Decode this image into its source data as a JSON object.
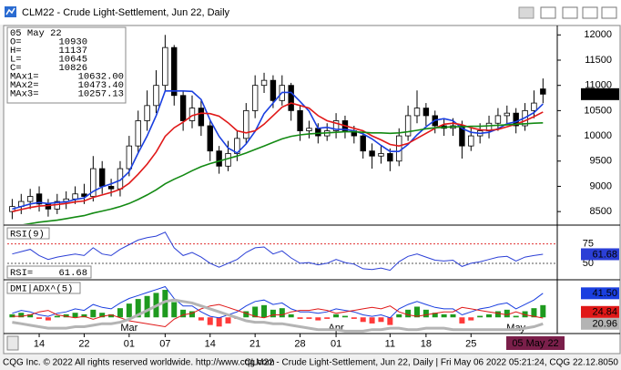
{
  "window": {
    "title": "CLM22 - Crude Light-Settlement, Jun 22, Daily",
    "footer_left": "CQG Inc. © 2022 All rights reserved worldwide. http://www.cqg.com",
    "footer_right": "CLM22 - Crude Light-Settlement, Jun 22, Daily | Fri May 06 2022 05:21:24, CQG 22.12.8050"
  },
  "chart_data": [
    {
      "type": "candlestick",
      "categories": [
        null,
        null,
        null,
        "14",
        null,
        null,
        null,
        null,
        "22",
        null,
        null,
        null,
        null,
        "01",
        null,
        null,
        null,
        "07",
        null,
        null,
        null,
        null,
        "14",
        null,
        null,
        null,
        null,
        "21",
        null,
        null,
        null,
        null,
        "28",
        null,
        null,
        null,
        "01",
        null,
        null,
        null,
        null,
        null,
        "11",
        null,
        null,
        null,
        "18",
        null,
        null,
        null,
        null,
        "25",
        null,
        null,
        null,
        null,
        null,
        null,
        null,
        null
      ],
      "month_labels": [
        null,
        null,
        null,
        null,
        null,
        null,
        null,
        null,
        null,
        null,
        null,
        null,
        null,
        "Mar",
        null,
        null,
        null,
        null,
        null,
        null,
        null,
        null,
        null,
        null,
        null,
        null,
        null,
        null,
        null,
        null,
        null,
        null,
        null,
        null,
        null,
        null,
        "Apr",
        null,
        null,
        null,
        null,
        null,
        null,
        null,
        null,
        null,
        null,
        null,
        null,
        null,
        null,
        null,
        null,
        null,
        null,
        null,
        "May",
        null,
        null,
        null
      ],
      "date_label": "05 May 22",
      "readout_labels": [
        "O=",
        "H=",
        "L=",
        "C="
      ],
      "open": [
        8500,
        8600,
        8700,
        8850,
        8650,
        8550,
        8700,
        8750,
        8850,
        8800,
        9350,
        9000,
        8950,
        9350,
        9800,
        10300,
        10600,
        11000,
        11750,
        10800,
        10300,
        10550,
        10200,
        9700,
        9400,
        9650,
        9950,
        10500,
        11000,
        11100,
        10700,
        11000,
        10500,
        10100,
        10150,
        10000,
        10100,
        10300,
        10100,
        10000,
        9700,
        9600,
        9650,
        9500,
        10000,
        10400,
        10550,
        10400,
        10200,
        10150,
        10200,
        9800,
        10000,
        10100,
        10250,
        10400,
        10450,
        10200,
        10500,
        10930
      ],
      "high": [
        8750,
        8850,
        8950,
        9000,
        8750,
        8850,
        8900,
        9000,
        9050,
        9600,
        9500,
        9150,
        9500,
        10000,
        10500,
        10900,
        11300,
        12000,
        11800,
        10900,
        10800,
        10700,
        10300,
        9800,
        9900,
        10100,
        10650,
        11200,
        11250,
        11200,
        11200,
        11050,
        10600,
        10300,
        10250,
        10250,
        10450,
        10400,
        10200,
        10100,
        9850,
        9800,
        9750,
        10150,
        10600,
        10900,
        10650,
        10500,
        10350,
        10350,
        10300,
        10150,
        10250,
        10400,
        10550,
        10600,
        10550,
        10650,
        10900,
        11137
      ],
      "low": [
        8350,
        8450,
        8550,
        8500,
        8400,
        8450,
        8550,
        8650,
        8650,
        8700,
        8850,
        8800,
        8800,
        9200,
        9650,
        10100,
        10450,
        10900,
        10600,
        10100,
        10150,
        10000,
        9500,
        9250,
        9300,
        9500,
        9850,
        10350,
        10850,
        10550,
        10600,
        10300,
        9900,
        9950,
        9850,
        9900,
        9950,
        9950,
        9850,
        9550,
        9350,
        9450,
        9300,
        9400,
        9900,
        10250,
        10200,
        10050,
        10000,
        10000,
        9550,
        9700,
        9850,
        9950,
        10100,
        10250,
        10050,
        10100,
        10350,
        10645
      ],
      "close": [
        8600,
        8700,
        8800,
        8650,
        8550,
        8700,
        8750,
        8850,
        8800,
        9350,
        9000,
        8950,
        9350,
        9800,
        10300,
        10600,
        11000,
        11750,
        10800,
        10300,
        10550,
        10200,
        9700,
        9400,
        9650,
        9950,
        10500,
        11000,
        11100,
        10700,
        11000,
        10500,
        10100,
        10150,
        10000,
        10100,
        10300,
        10100,
        10000,
        9700,
        9600,
        9650,
        9500,
        10000,
        10400,
        10550,
        10400,
        10200,
        10150,
        10200,
        9800,
        10000,
        10100,
        10250,
        10400,
        10450,
        10200,
        10500,
        10650,
        10826
      ],
      "up_color": "#ffffff",
      "down_color": "#000000",
      "last_box_color": "#000000",
      "series": [
        {
          "name": "MAx1=",
          "color": "#1a3fe0",
          "values": [
            8550,
            8600,
            8650,
            8680,
            8660,
            8680,
            8690,
            8740,
            8770,
            8900,
            8990,
            9050,
            9120,
            9290,
            9660,
            10000,
            10400,
            10890,
            10890,
            10890,
            10880,
            10720,
            10310,
            9990,
            9760,
            9660,
            9840,
            10090,
            10440,
            10650,
            10860,
            10860,
            10680,
            10490,
            10150,
            10170,
            10130,
            10130,
            10100,
            10040,
            9940,
            9810,
            9690,
            9690,
            9830,
            10020,
            10180,
            10310,
            10340,
            10300,
            10150,
            10070,
            10050,
            10070,
            10140,
            10240,
            10280,
            10360,
            10460,
            10632
          ],
          "value_labels": {
            "59": "10632.00"
          }
        },
        {
          "name": "MAx2=",
          "color": "#e01818",
          "values": [
            8500,
            8540,
            8580,
            8610,
            8620,
            8640,
            8660,
            8690,
            8710,
            8780,
            8830,
            8880,
            8940,
            9060,
            9240,
            9440,
            9680,
            9990,
            10160,
            10270,
            10400,
            10450,
            10440,
            10390,
            10260,
            10100,
            10060,
            10100,
            10230,
            10400,
            10570,
            10650,
            10600,
            10550,
            10400,
            10300,
            10250,
            10200,
            10150,
            10100,
            10000,
            9920,
            9830,
            9800,
            9850,
            9950,
            10050,
            10150,
            10230,
            10250,
            10220,
            10160,
            10120,
            10110,
            10130,
            10180,
            10230,
            10300,
            10380,
            10473.4
          ],
          "value_labels": {
            "59": "10473.40"
          }
        },
        {
          "name": "MAx3=",
          "color": "#138a13",
          "values": [
            8200,
            8230,
            8260,
            8290,
            8310,
            8330,
            8360,
            8390,
            8420,
            8470,
            8510,
            8550,
            8600,
            8660,
            8740,
            8830,
            8930,
            9050,
            9140,
            9220,
            9310,
            9390,
            9450,
            9500,
            9550,
            9600,
            9660,
            9730,
            9800,
            9870,
            9940,
            9990,
            10020,
            10040,
            10050,
            10060,
            10070,
            10080,
            10080,
            10070,
            10060,
            10060,
            10050,
            10060,
            10080,
            10110,
            10140,
            10160,
            10170,
            10180,
            10180,
            10190,
            10190,
            10200,
            10210,
            10220,
            10230,
            10240,
            10250,
            10257.13
          ]
        }
      ],
      "ylim": [
        8250,
        12150
      ],
      "yticks": [
        8500,
        9000,
        9500,
        10000,
        10500,
        11000,
        11500,
        12000
      ],
      "grid": false
    },
    {
      "type": "line",
      "title": "RSI(9)",
      "ylim": [
        30,
        98
      ],
      "yticks": [
        50,
        75
      ],
      "level_colors": [
        "#555555",
        "#e03030"
      ],
      "series": [
        {
          "name": "RSI=",
          "color": "#2b3fd6",
          "values": [
            62,
            65,
            68,
            60,
            55,
            58,
            60,
            62,
            60,
            70,
            62,
            60,
            68,
            74,
            80,
            83,
            85,
            90,
            70,
            60,
            64,
            58,
            50,
            45,
            50,
            55,
            64,
            70,
            71,
            62,
            66,
            57,
            50,
            51,
            48,
            50,
            55,
            51,
            49,
            43,
            42,
            44,
            41,
            52,
            59,
            62,
            58,
            54,
            53,
            54,
            46,
            50,
            52,
            55,
            58,
            59,
            53,
            58,
            60,
            61.68
          ]
        }
      ]
    },
    {
      "type": "combo",
      "title": "DMI|ADX^(5)",
      "ylim": [
        15,
        50
      ],
      "y2lim": [
        -10,
        24
      ],
      "series": [
        {
          "type": "bar",
          "axis": "y2",
          "up_color": "#1e9a1e",
          "down_color": "#ff3a3a",
          "values": [
            2,
            3,
            2,
            -1,
            -2,
            1,
            2,
            3,
            2,
            5,
            3,
            2,
            6,
            9,
            12,
            14,
            16,
            18,
            10,
            5,
            4,
            -2,
            -5,
            -6,
            -4,
            -1,
            4,
            7,
            8,
            5,
            6,
            2,
            -1,
            -1,
            -2,
            -1,
            2,
            1,
            -1,
            -3,
            -4,
            -3,
            -5,
            2,
            5,
            7,
            5,
            3,
            2,
            2,
            -4,
            -2,
            1,
            2,
            4,
            5,
            1,
            4,
            6,
            8
          ]
        },
        {
          "type": "line",
          "color": "#1a3fe0",
          "width": 1,
          "label_text_color": "#ffffff",
          "values": [
            28,
            30,
            29,
            27,
            26,
            28,
            29,
            31,
            30,
            34,
            32,
            31,
            35,
            38,
            40,
            42,
            44,
            46,
            38,
            33,
            33,
            29,
            26,
            25,
            27,
            29,
            33,
            36,
            37,
            34,
            35,
            31,
            29,
            29,
            28,
            29,
            31,
            30,
            29,
            27,
            26,
            27,
            25,
            31,
            34,
            36,
            34,
            32,
            31,
            31,
            27,
            29,
            31,
            32,
            34,
            35,
            31,
            34,
            37,
            41.5
          ],
          "value_labels": {
            "59": "41.50"
          }
        },
        {
          "type": "line",
          "color": "#e01818",
          "width": 1,
          "label_text_color": "#ffffff",
          "values": [
            26,
            26,
            27,
            29,
            30,
            27,
            26,
            25,
            26,
            24,
            26,
            27,
            25,
            23,
            22,
            21,
            20,
            19,
            24,
            27,
            28,
            31,
            33,
            34,
            32,
            30,
            28,
            26,
            25,
            27,
            27,
            29,
            30,
            30,
            31,
            30,
            28,
            29,
            30,
            31,
            32,
            31,
            33,
            29,
            27,
            26,
            27,
            28,
            29,
            29,
            32,
            31,
            30,
            29,
            28,
            27,
            29,
            27,
            26,
            24.84
          ]
        },
        {
          "type": "line",
          "color": "#b4b4b4",
          "width": 3,
          "label_text_color": "#000000",
          "values": [
            22,
            21,
            20,
            19,
            18,
            18,
            18,
            19,
            19,
            20,
            21,
            21,
            22,
            24,
            27,
            30,
            33,
            36,
            37,
            36,
            35,
            33,
            31,
            29,
            27,
            25,
            23,
            22,
            22,
            21,
            21,
            20,
            19,
            18,
            17,
            17,
            17,
            16,
            16,
            16,
            17,
            17,
            18,
            18,
            17,
            17,
            18,
            18,
            18,
            17,
            17,
            17,
            17,
            17,
            17,
            17,
            17,
            18,
            19,
            20.96
          ]
        }
      ]
    }
  ]
}
